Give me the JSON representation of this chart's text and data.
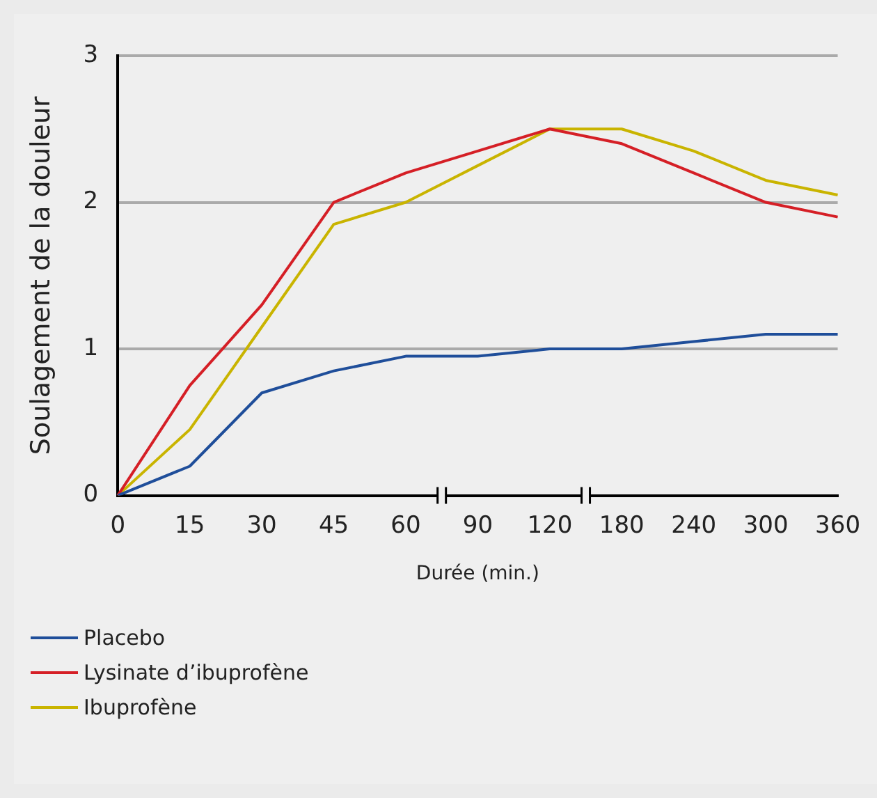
{
  "chart_data": {
    "type": "line",
    "xlabel": "Durée (min.)",
    "ylabel": "Soulagement de la douleur",
    "categories": [
      "0",
      "15",
      "30",
      "45",
      "60",
      "90",
      "120",
      "180",
      "240",
      "300",
      "360"
    ],
    "series": [
      {
        "name": "Placebo",
        "color": "#1f4e9a",
        "values": [
          0,
          0.2,
          0.7,
          0.85,
          0.95,
          0.95,
          1.0,
          1.0,
          1.05,
          1.1,
          1.1
        ]
      },
      {
        "name": "Lysinate d’ibuprofène",
        "color": "#d51f26",
        "values": [
          0,
          0.75,
          1.3,
          2.0,
          2.2,
          2.35,
          2.5,
          2.4,
          2.2,
          2.0,
          1.9
        ]
      },
      {
        "name": "Ibuprofène",
        "color": "#c9b400",
        "values": [
          0,
          0.45,
          1.15,
          1.85,
          2.0,
          2.25,
          2.5,
          2.5,
          2.35,
          2.15,
          2.05
        ]
      }
    ],
    "ylim": [
      0,
      3
    ],
    "yticks": [
      0,
      1,
      2,
      3
    ],
    "grid": "y",
    "legend": "bottom",
    "marker": "none",
    "line_style": "solid"
  }
}
